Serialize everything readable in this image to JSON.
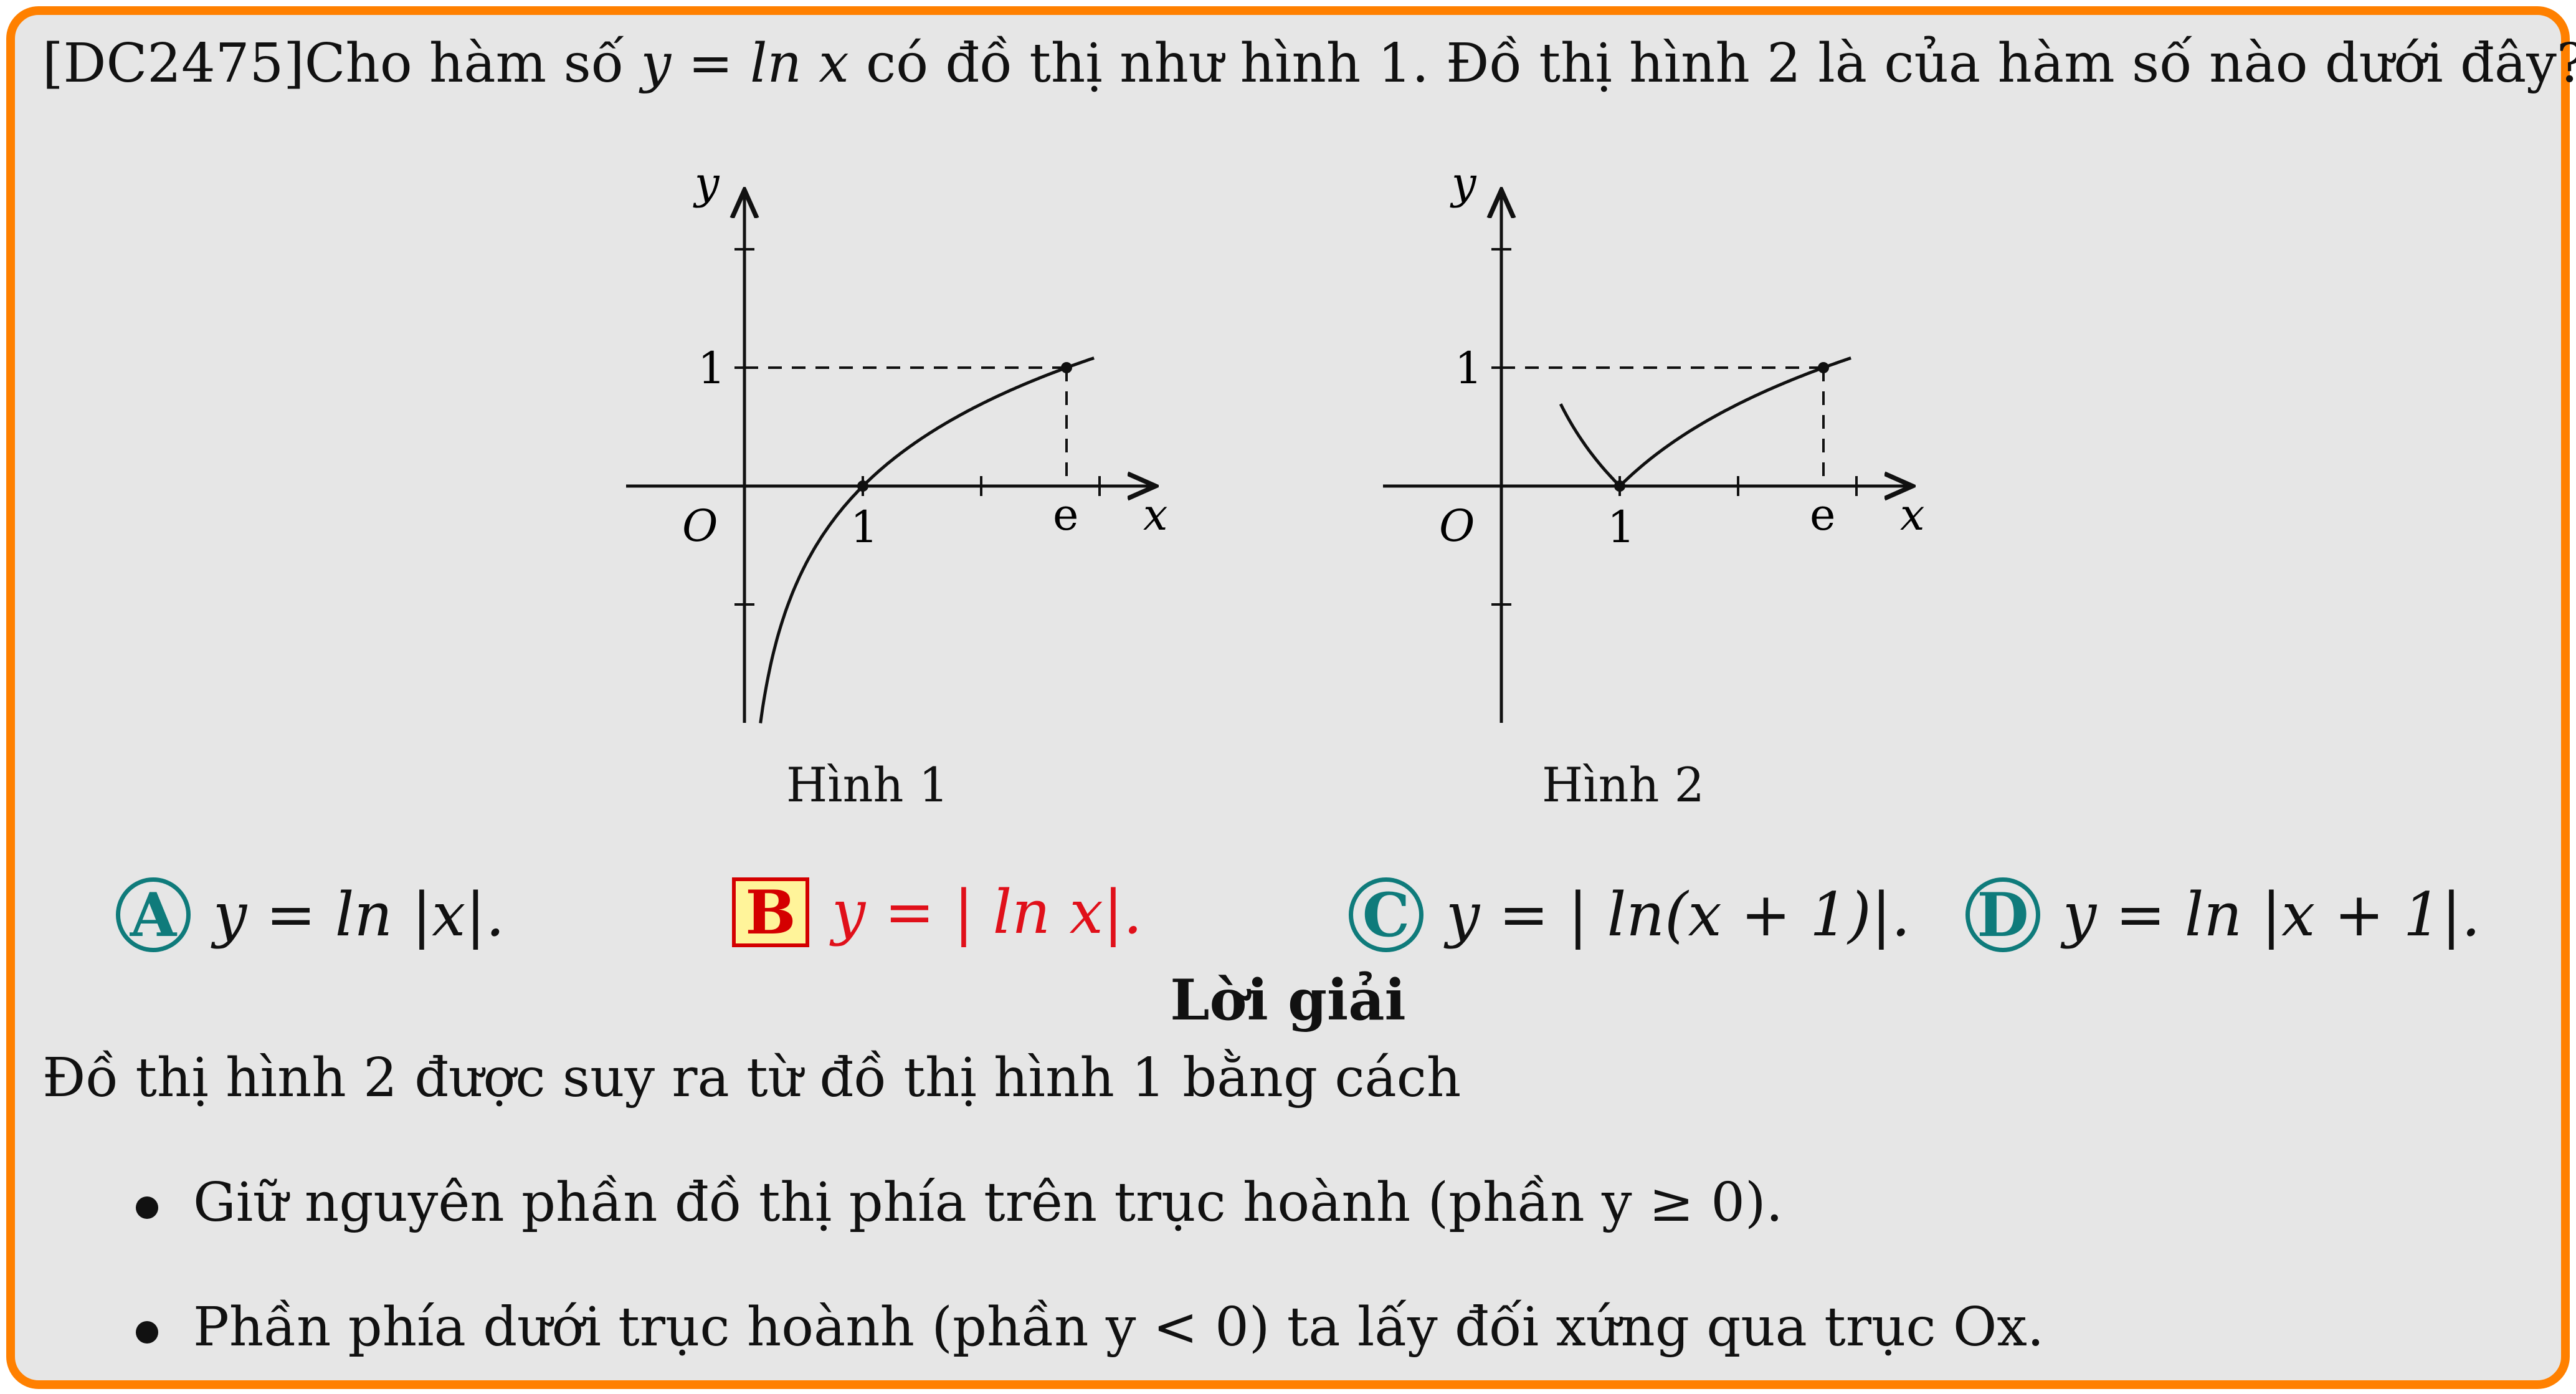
{
  "question": {
    "prefix": "[DC2475]Cho hàm số ",
    "math1": "y = ln x",
    "suffix": " có đồ thị như hình 1. Đồ thị hình 2 là của hàm số nào dưới đây?"
  },
  "figure1": {
    "caption": "Hình 1",
    "ylabel": "y",
    "xlabel": "x",
    "origin": "O",
    "tick_one_x": "1",
    "tick_e": "e",
    "tick_one_y": "1"
  },
  "figure2": {
    "caption": "Hình 2",
    "ylabel": "y",
    "xlabel": "x",
    "origin": "O",
    "tick_one_x": "1",
    "tick_e": "e",
    "tick_one_y": "1"
  },
  "options": [
    {
      "letter": "A",
      "text": "y = ln |x|."
    },
    {
      "letter": "B",
      "text": "y = | ln x|."
    },
    {
      "letter": "C",
      "text": "y = | ln(x + 1)|."
    },
    {
      "letter": "D",
      "text": "y = ln |x + 1|."
    }
  ],
  "solution": {
    "title": "Lời giải",
    "intro": "Đồ thị hình 2 được suy ra từ đồ thị hình 1 bằng cách",
    "bullets": [
      "Giữ nguyên phần đồ thị phía trên trục hoành (phần y ≥ 0).",
      "Phần phía dưới trục hoành (phần y < 0) ta lấy đối xứng qua trục Ox."
    ]
  },
  "colors": {
    "border": "#ff8000",
    "background": "#e6e6e6",
    "option_circle": "#0f7b7b",
    "correct_text": "#e0101a",
    "correct_box_fill": "#fff49a"
  }
}
